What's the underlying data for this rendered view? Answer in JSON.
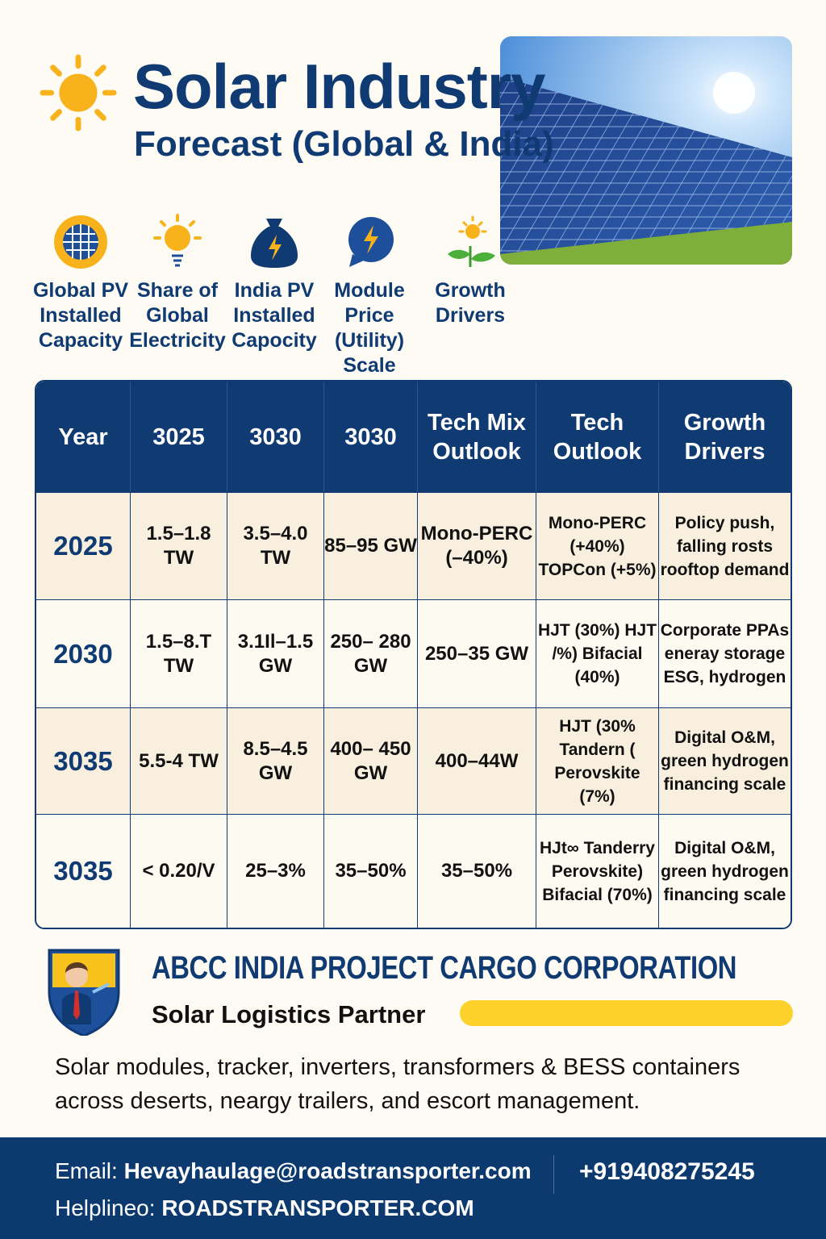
{
  "header": {
    "title": "Solar Industry",
    "subtitle": "Forecast (Global & India)"
  },
  "metrics": [
    {
      "label": "Global PV Installed Capacity",
      "icon": "globe-solar-icon"
    },
    {
      "label": "Share of Global Electricity",
      "icon": "sun-icon"
    },
    {
      "label": "India PV Installed Capocity",
      "icon": "money-bag-icon"
    },
    {
      "label": "Module Price (Utility) Scale",
      "icon": "lightning-bubble-icon"
    },
    {
      "label": "Growth Drivers",
      "icon": "plant-sun-icon"
    }
  ],
  "table": {
    "headers": [
      "Year",
      "3025",
      "3030",
      "3030",
      "Tech Mix Outlook",
      "Tech Outlook",
      "Growth Drivers"
    ],
    "rows": [
      [
        "2025",
        "1.5–1.8 TW",
        "3.5–4.0 TW",
        "85–95 GW",
        "Mono-PERC (–40%)",
        "Mono-PERC (+40%) TOPCon (+5%)",
        "Policy push, falling rosts rooftop demand"
      ],
      [
        "2030",
        "1.5–8.T TW",
        "3.1Il–1.5 GW",
        "250– 280 GW",
        "250–35 GW",
        "HJT (30%) HJT /%) Bifacial (40%)",
        "Corporate PPAs eneray storage ESG, hydrogen"
      ],
      [
        "3035",
        "5.5-4 TW",
        "8.5–4.5 GW",
        "400– 450 GW",
        "400–44W",
        "HJT (30% Tandern ( Perovskite (7%)",
        "Digital O&M, green hydrogen financing scale"
      ],
      [
        "3035",
        "< 0.20/V",
        "25–3%",
        "35–50%",
        "35–50%",
        "HJt∞ Tanderry Perovskite) Bifacial (70%)",
        "Digital O&M, green hydrogen financing scale"
      ]
    ]
  },
  "company": {
    "name": "ABCC INDIA PROJECT CARGO CORPORATION",
    "tagline": "Solar Logistics Partner",
    "description": "Solar modules, tracker, inverters, transformers & BESS containers across deserts, neargy trailers, and escort management."
  },
  "footer": {
    "email_label": "Email:",
    "email": "Hevayhaulage@roadstransporter.com",
    "phone": "+919408275245",
    "helpline_label": "Helplineo:",
    "helpline": "ROADSTRANSPORTER.COM"
  },
  "colors": {
    "navy": "#0f3a72",
    "yellow": "#fcd12a",
    "sun": "#f7b21c",
    "background": "#fdfbf4"
  }
}
